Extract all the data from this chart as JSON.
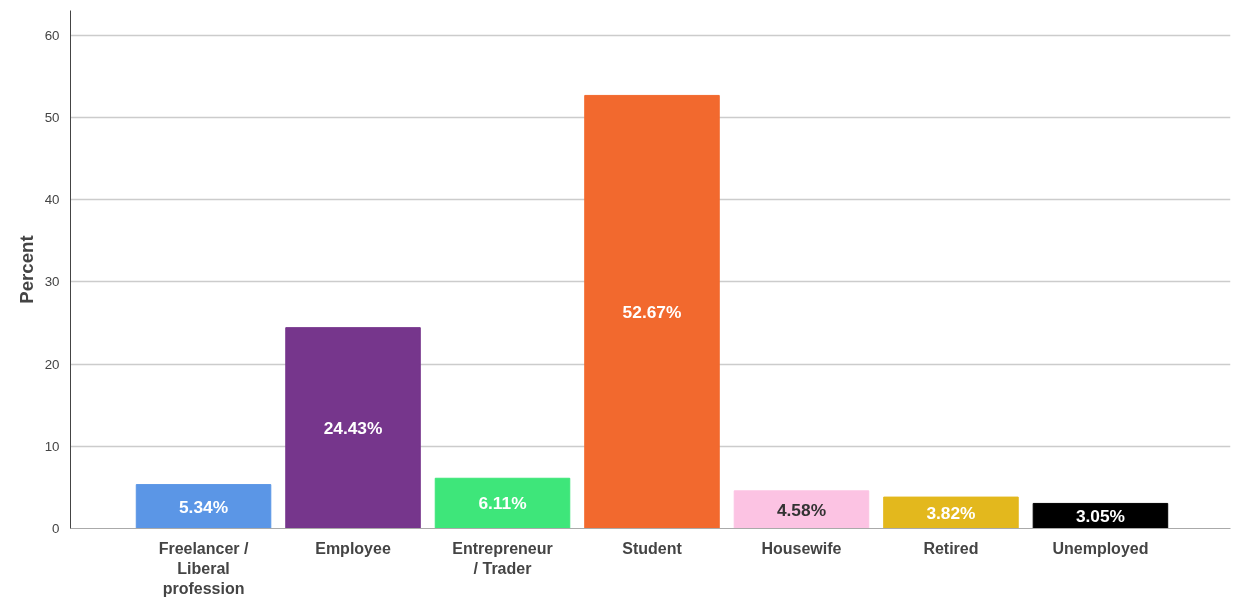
{
  "chart_data": {
    "type": "bar",
    "ylabel": "Percent",
    "categories": [
      "Freelancer / Liberal profession",
      "Employee",
      "Entrepreneur / Trader",
      "Student",
      "Housewife",
      "Retired",
      "Unemployed"
    ],
    "values": [
      5.34,
      24.43,
      6.11,
      52.67,
      4.58,
      3.82,
      3.05
    ],
    "colors": [
      "#5b96e6",
      "#76368c",
      "#3ee67a",
      "#f2692e",
      "#fcc3e3",
      "#e3b81d",
      "#000000"
    ],
    "value_labels": [
      "5.34%",
      "24.43%",
      "6.11%",
      "52.67%",
      "4.58%",
      "3.82%",
      "3.05%"
    ],
    "ylim": [
      0,
      63
    ],
    "yticks": [
      0,
      10,
      20,
      30,
      40,
      50,
      60
    ],
    "grid": "y"
  }
}
